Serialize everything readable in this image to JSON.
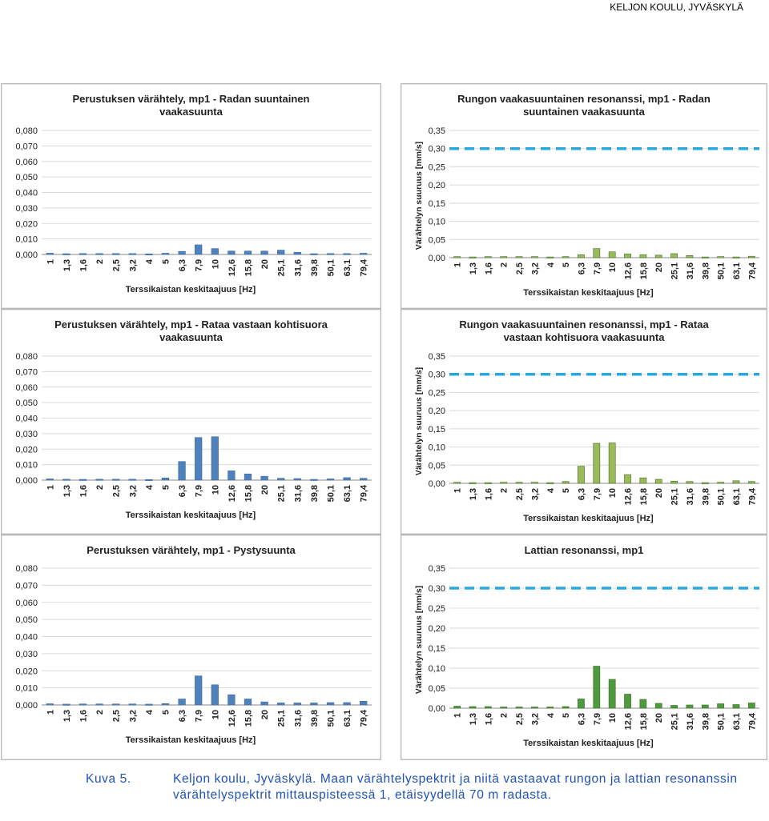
{
  "header": {
    "text": "KELJON KOULU, JYVÄSKYLÄ"
  },
  "caption": {
    "label": "Kuva 5.",
    "text": "Keljon koulu, Jyväskylä. Maan värähtelyspektrit ja niitä vastaavat rungon ja lattian resonanssin värähtelyspektrit mittauspisteessä 1, etäisyydellä 70 m radasta."
  },
  "colors": {
    "blue_bar": "#4f81bd",
    "green_light": "#9bbb59",
    "green_dark": "#4e9a3e",
    "limit_line": "#29a8e0",
    "grid": "#d9d9d9"
  },
  "chart_data": [
    {
      "type": "bar",
      "title": "Perustuksen värähtely, mp1 - Radan suuntainen vaakasuunta",
      "xlabel": "Terssikaistan keskitaajuus [Hz]",
      "ylabel": "",
      "categories": [
        "1",
        "1,3",
        "1,6",
        "2",
        "2,5",
        "3,2",
        "4",
        "5",
        "6,3",
        "7,9",
        "10",
        "12,6",
        "15,8",
        "20",
        "25,1",
        "31,6",
        "39,8",
        "50,1",
        "63,1",
        "79,4"
      ],
      "values": [
        0.0008,
        0.0005,
        0.0006,
        0.0006,
        0.0006,
        0.0006,
        0.0004,
        0.0008,
        0.002,
        0.0062,
        0.0038,
        0.0022,
        0.0022,
        0.0022,
        0.0028,
        0.0014,
        0.0005,
        0.0006,
        0.0006,
        0.0008
      ],
      "ylim": [
        0,
        0.08
      ],
      "yticks": [
        "0,000",
        "0,010",
        "0,020",
        "0,030",
        "0,040",
        "0,050",
        "0,060",
        "0,070",
        "0,080"
      ],
      "color": "blue"
    },
    {
      "type": "bar",
      "title": "Rungon vaakasuuntainen resonanssi, mp1 - Radan suuntainen vaakasuunta",
      "xlabel": "Terssikaistan keskitaajuus [Hz]",
      "ylabel": "Värähtelyn suuruus [mm/s]",
      "categories": [
        "1",
        "1,3",
        "1,6",
        "2",
        "2,5",
        "3,2",
        "4",
        "5",
        "6,3",
        "7,9",
        "10",
        "12,6",
        "15,8",
        "20",
        "25,1",
        "31,6",
        "39,8",
        "50,1",
        "63,1",
        "79,4"
      ],
      "values": [
        0.003,
        0.002,
        0.003,
        0.003,
        0.003,
        0.003,
        0.002,
        0.003,
        0.008,
        0.025,
        0.016,
        0.01,
        0.008,
        0.007,
        0.011,
        0.006,
        0.002,
        0.003,
        0.002,
        0.004
      ],
      "ylim": [
        0,
        0.35
      ],
      "yticks": [
        "0,00",
        "0,05",
        "0,10",
        "0,15",
        "0,20",
        "0,25",
        "0,30",
        "0,35"
      ],
      "limit_line": 0.3,
      "color": "green_light"
    },
    {
      "type": "bar",
      "title": "Perustuksen värähtely, mp1 - Rataa vastaan kohtisuora vaakasuunta",
      "xlabel": "Terssikaistan keskitaajuus [Hz]",
      "ylabel": "",
      "categories": [
        "1",
        "1,3",
        "1,6",
        "2",
        "2,5",
        "3,2",
        "4",
        "5",
        "6,3",
        "7,9",
        "10",
        "12,6",
        "15,8",
        "20",
        "25,1",
        "31,6",
        "39,8",
        "50,1",
        "63,1",
        "79,4"
      ],
      "values": [
        0.0008,
        0.0006,
        0.0005,
        0.0006,
        0.0006,
        0.0006,
        0.0004,
        0.0014,
        0.012,
        0.0275,
        0.028,
        0.006,
        0.004,
        0.0025,
        0.0012,
        0.001,
        0.0005,
        0.0008,
        0.0016,
        0.0012
      ],
      "ylim": [
        0,
        0.08
      ],
      "yticks": [
        "0,000",
        "0,010",
        "0,020",
        "0,030",
        "0,040",
        "0,050",
        "0,060",
        "0,070",
        "0,080"
      ],
      "color": "blue"
    },
    {
      "type": "bar",
      "title": "Rungon vaakasuuntainen resonanssi, mp1 - Rataa vastaan kohtisuora vaakasuunta",
      "xlabel": "Terssikaistan keskitaajuus [Hz]",
      "ylabel": "Värähtelyn suuruus [mm/s]",
      "categories": [
        "1",
        "1,3",
        "1,6",
        "2",
        "2,5",
        "3,2",
        "4",
        "5",
        "6,3",
        "7,9",
        "10",
        "12,6",
        "15,8",
        "20",
        "25,1",
        "31,6",
        "39,8",
        "50,1",
        "63,1",
        "79,4"
      ],
      "values": [
        0.003,
        0.002,
        0.002,
        0.003,
        0.003,
        0.003,
        0.002,
        0.005,
        0.047,
        0.11,
        0.111,
        0.024,
        0.015,
        0.011,
        0.006,
        0.005,
        0.002,
        0.003,
        0.007,
        0.005
      ],
      "ylim": [
        0,
        0.35
      ],
      "yticks": [
        "0,00",
        "0,05",
        "0,10",
        "0,15",
        "0,20",
        "0,25",
        "0,30",
        "0,35"
      ],
      "limit_line": 0.3,
      "color": "green_light"
    },
    {
      "type": "bar",
      "title": "Perustuksen värähtely, mp1 - Pystysuunta",
      "xlabel": "Terssikaistan keskitaajuus [Hz]",
      "ylabel": "",
      "categories": [
        "1",
        "1,3",
        "1,6",
        "2",
        "2,5",
        "3,2",
        "4",
        "5",
        "6,3",
        "7,9",
        "10",
        "12,6",
        "15,8",
        "20",
        "25,1",
        "31,6",
        "39,8",
        "50,1",
        "63,1",
        "79,4"
      ],
      "values": [
        0.0007,
        0.0005,
        0.0006,
        0.0006,
        0.0006,
        0.0006,
        0.0005,
        0.0008,
        0.0035,
        0.017,
        0.0118,
        0.006,
        0.0035,
        0.0018,
        0.0012,
        0.0012,
        0.0012,
        0.0014,
        0.0014,
        0.0022
      ],
      "ylim": [
        0,
        0.08
      ],
      "yticks": [
        "0,000",
        "0,010",
        "0,020",
        "0,030",
        "0,040",
        "0,050",
        "0,060",
        "0,070",
        "0,080"
      ],
      "color": "blue"
    },
    {
      "type": "bar",
      "title": "Lattian resonanssi, mp1",
      "xlabel": "Terssikaistan keskitaajuus [Hz]",
      "ylabel": "Värähtelyn suuruus [mm/s]",
      "categories": [
        "1",
        "1,3",
        "1,6",
        "2",
        "2,5",
        "3,2",
        "4",
        "5",
        "6,3",
        "7,9",
        "10",
        "12,6",
        "15,8",
        "20",
        "25,1",
        "31,6",
        "39,8",
        "50,1",
        "63,1",
        "79,4"
      ],
      "values": [
        0.005,
        0.004,
        0.004,
        0.003,
        0.003,
        0.003,
        0.003,
        0.004,
        0.023,
        0.105,
        0.072,
        0.035,
        0.022,
        0.012,
        0.007,
        0.008,
        0.008,
        0.011,
        0.009,
        0.013
      ],
      "ylim": [
        0,
        0.35
      ],
      "yticks": [
        "0,00",
        "0,05",
        "0,10",
        "0,15",
        "0,20",
        "0,25",
        "0,30",
        "0,35"
      ],
      "limit_line": 0.3,
      "color": "green_dark"
    }
  ]
}
